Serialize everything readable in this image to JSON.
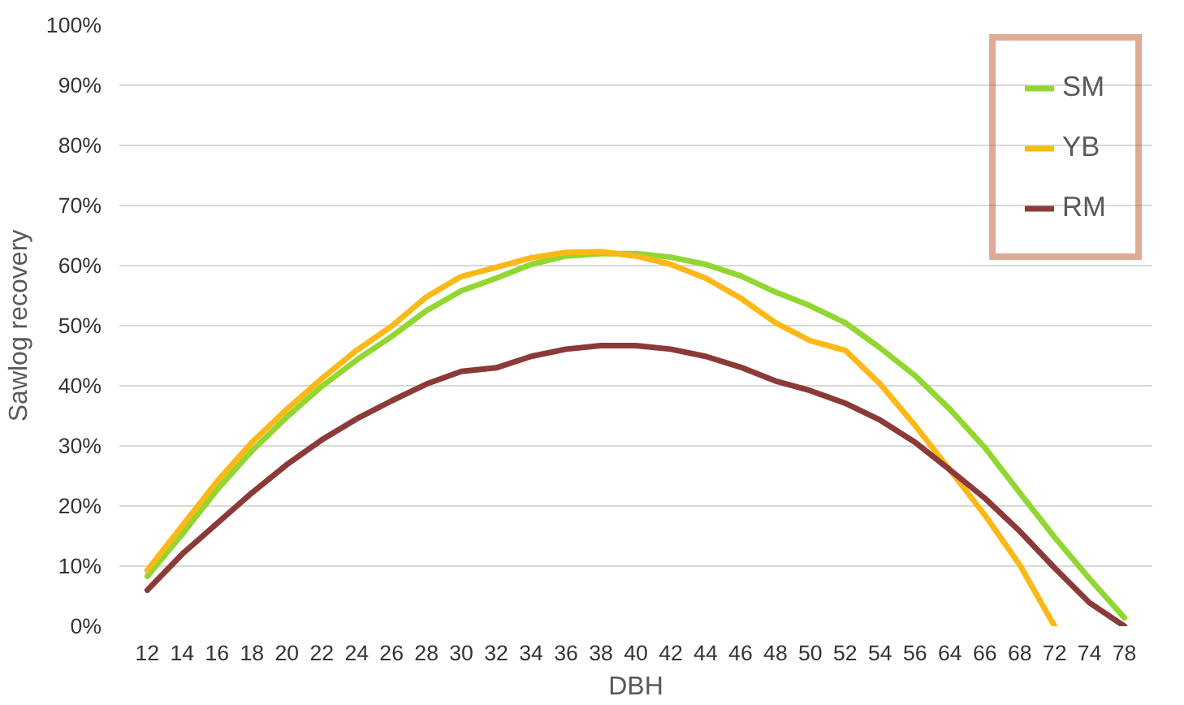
{
  "chart_data": {
    "type": "line",
    "xlabel": "DBH",
    "ylabel": "Sawlog recovery",
    "categories": [
      "12",
      "14",
      "16",
      "18",
      "20",
      "22",
      "24",
      "26",
      "28",
      "30",
      "32",
      "34",
      "36",
      "38",
      "40",
      "42",
      "44",
      "46",
      "48",
      "50",
      "52",
      "54",
      "56",
      "64",
      "66",
      "68",
      "72",
      "74",
      "78"
    ],
    "series": [
      {
        "name": "SM",
        "color": "#92d731",
        "values": [
          8.3,
          15.3,
          22.7,
          29.2,
          34.8,
          39.9,
          44.3,
          48.2,
          52.5,
          55.8,
          57.9,
          60.2,
          61.6,
          62.0,
          62.0,
          61.4,
          60.2,
          58.3,
          55.6,
          53.3,
          50.5,
          46.3,
          41.7,
          36.1,
          29.7,
          22.2,
          14.8,
          7.9,
          1.4
        ]
      },
      {
        "name": "YB",
        "color": "#fbb917",
        "values": [
          9.3,
          16.7,
          24.1,
          30.6,
          36.1,
          41.2,
          45.9,
          49.9,
          54.8,
          58.2,
          59.7,
          61.3,
          62.2,
          62.3,
          61.6,
          60.2,
          57.9,
          54.6,
          50.5,
          47.5,
          45.9,
          40.3,
          33.4,
          26.0,
          18.5,
          10.2,
          0.0,
          null,
          null
        ]
      },
      {
        "name": "RM",
        "color": "#8b3a38",
        "values": [
          6.0,
          12.0,
          17.1,
          22.2,
          26.9,
          31.0,
          34.5,
          37.5,
          40.3,
          42.4,
          43.0,
          44.9,
          46.1,
          46.7,
          46.7,
          46.1,
          44.9,
          43.1,
          40.8,
          39.2,
          37.1,
          34.3,
          30.6,
          26.0,
          21.3,
          15.8,
          9.7,
          3.9,
          0.0
        ]
      }
    ],
    "ylim": [
      0,
      100
    ],
    "yticks": [
      {
        "value": 0,
        "label": "0%"
      },
      {
        "value": 10,
        "label": "10%"
      },
      {
        "value": 20,
        "label": "20%"
      },
      {
        "value": 30,
        "label": "30%"
      },
      {
        "value": 40,
        "label": "40%"
      },
      {
        "value": 50,
        "label": "50%"
      },
      {
        "value": 60,
        "label": "60%"
      },
      {
        "value": 70,
        "label": "70%"
      },
      {
        "value": 80,
        "label": "80%"
      },
      {
        "value": 90,
        "label": "90%"
      },
      {
        "value": 100,
        "label": "100%"
      }
    ],
    "grid": "y",
    "legend": "top right",
    "line_style": "solid"
  }
}
